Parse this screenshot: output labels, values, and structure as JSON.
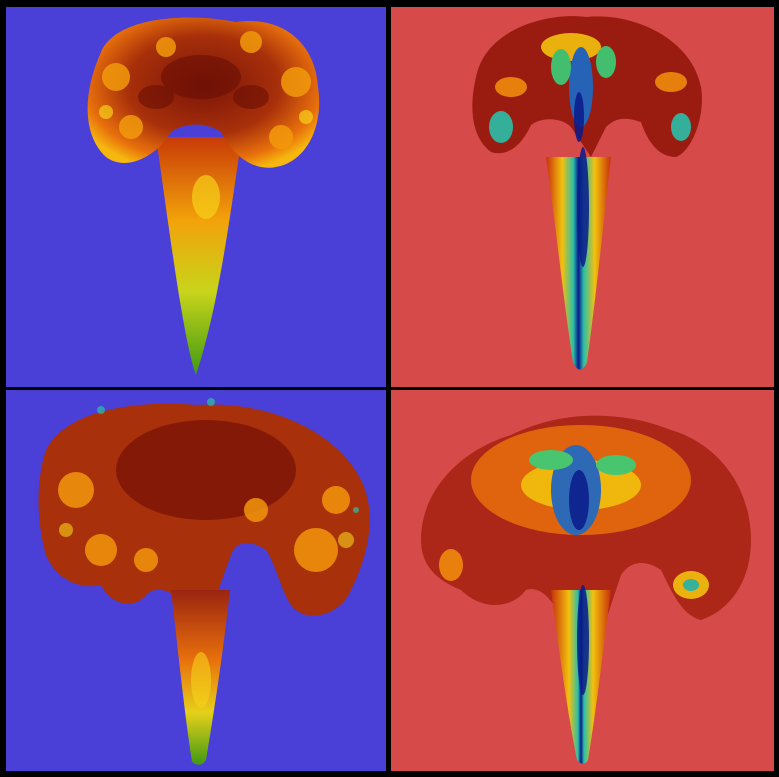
{
  "panels": [
    {
      "id": "top-left",
      "background": "#4a3fd6",
      "colormap": "warm",
      "stage": "early"
    },
    {
      "id": "top-right",
      "background": "#d64a4a",
      "colormap": "rainbow",
      "stage": "early"
    },
    {
      "id": "bottom-left",
      "background": "#4a3fd6",
      "colormap": "warm",
      "stage": "late"
    },
    {
      "id": "bottom-right",
      "background": "#d64a4a",
      "colormap": "rainbow",
      "stage": "late"
    }
  ],
  "colors": {
    "frame": "#000000",
    "blue_background": "#4a3fd6",
    "red_background": "#d64a4a"
  }
}
